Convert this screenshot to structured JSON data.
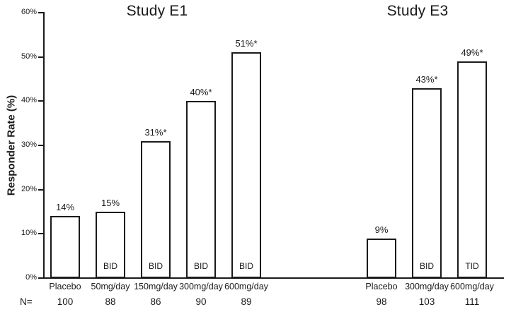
{
  "chart_data": {
    "type": "bar",
    "title": "",
    "ylabel": "Responder Rate (%)",
    "xlabel": "",
    "ylim": [
      0,
      60
    ],
    "ytick_step": 10,
    "yticks": [
      "0%",
      "10%",
      "20%",
      "30%",
      "40%",
      "50%",
      "60%"
    ],
    "grid": "off",
    "legend": "none",
    "n_row_label": "N=",
    "groups": [
      {
        "title": "Study E1",
        "bars": [
          {
            "category": "Placebo",
            "value": 14,
            "value_label": "14%",
            "inner_label": "",
            "n": "100"
          },
          {
            "category": "50mg/day",
            "value": 15,
            "value_label": "15%",
            "inner_label": "BID",
            "n": "88"
          },
          {
            "category": "150mg/day",
            "value": 31,
            "value_label": "31%*",
            "inner_label": "BID",
            "n": "86"
          },
          {
            "category": "300mg/day",
            "value": 40,
            "value_label": "40%*",
            "inner_label": "BID",
            "n": "90"
          },
          {
            "category": "600mg/day",
            "value": 51,
            "value_label": "51%*",
            "inner_label": "BID",
            "n": "89"
          }
        ]
      },
      {
        "title": "Study E3",
        "bars": [
          {
            "category": "Placebo",
            "value": 9,
            "value_label": "9%",
            "inner_label": "",
            "n": "98"
          },
          {
            "category": "300mg/day",
            "value": 43,
            "value_label": "43%*",
            "inner_label": "BID",
            "n": "103"
          },
          {
            "category": "600mg/day",
            "value": 49,
            "value_label": "49%*",
            "inner_label": "TID",
            "n": "111"
          }
        ]
      }
    ],
    "colors": {
      "bar_fill": "#ffffff",
      "bar_border": "#1a1a1a",
      "text": "#1a1a1a",
      "background": "#ffffff"
    }
  }
}
